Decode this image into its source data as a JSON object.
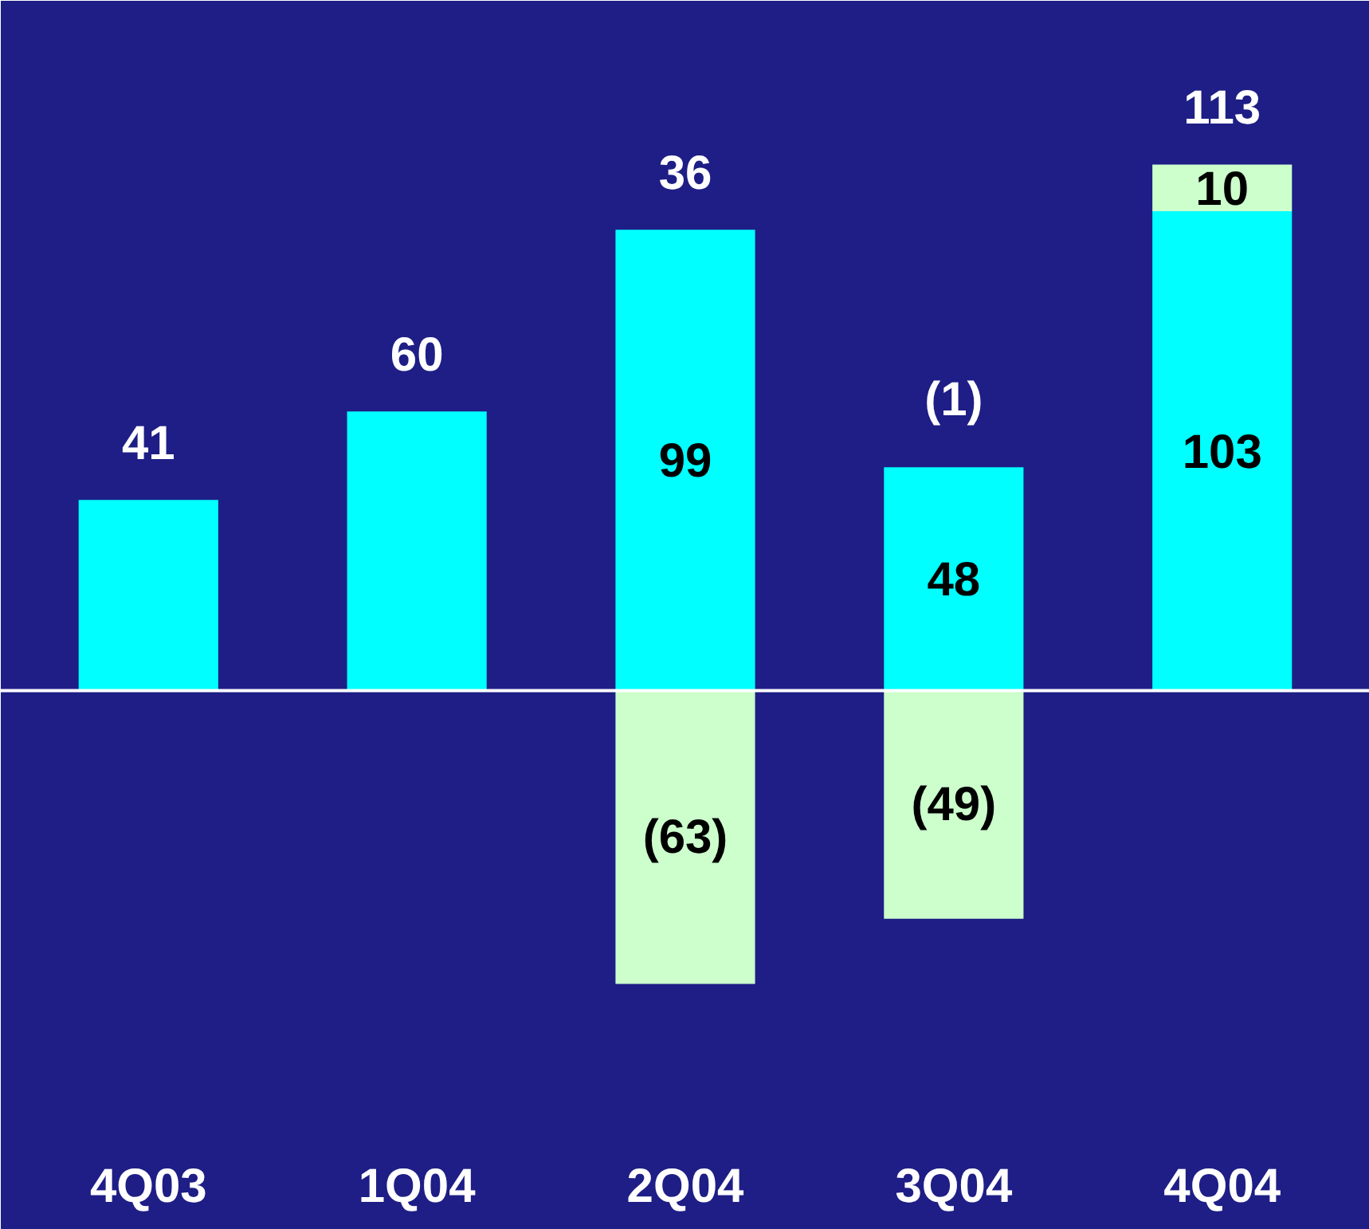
{
  "chart_data": {
    "type": "bar",
    "stacked": true,
    "categories": [
      "4Q03",
      "1Q04",
      "2Q04",
      "3Q04",
      "4Q04"
    ],
    "series": [
      {
        "color": "#00ffff",
        "values": [
          41,
          60,
          99,
          48,
          103
        ],
        "value_labels": [
          null,
          null,
          "99",
          "48",
          "103"
        ]
      },
      {
        "color": "#ccffcc",
        "values": [
          0,
          0,
          -63,
          -49,
          10
        ],
        "value_labels": [
          null,
          null,
          "(63)",
          "(49)",
          "10"
        ]
      }
    ],
    "totals": [
      "41",
      "60",
      "36",
      "(1)",
      "113"
    ],
    "grid": false
  }
}
